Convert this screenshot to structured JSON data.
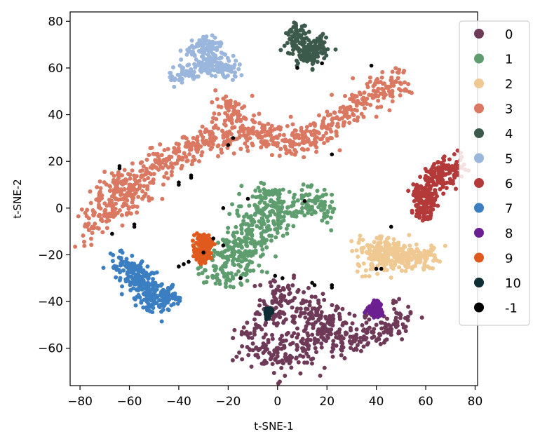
{
  "chart_data": {
    "type": "scatter",
    "title": "",
    "xlabel": "t-SNE-1",
    "ylabel": "t-SNE-2",
    "xlim": [
      -84,
      81
    ],
    "ylim": [
      -76,
      84
    ],
    "xticks": [
      -80,
      -60,
      -40,
      -20,
      0,
      20,
      40,
      60,
      80
    ],
    "yticks": [
      -60,
      -40,
      -20,
      0,
      20,
      40,
      60,
      80
    ],
    "tick_labels_x": [
      "−80",
      "−60",
      "−40",
      "−20",
      "0",
      "20",
      "40",
      "60",
      "80"
    ],
    "tick_labels_y": [
      "−60",
      "−40",
      "−20",
      "0",
      "20",
      "40",
      "60",
      "80"
    ],
    "grid": false,
    "legend_position": "upper-right",
    "series": [
      {
        "name": "0",
        "color": "#6f3a58",
        "points": [
          [
            0,
            -35
          ],
          [
            5,
            -40
          ],
          [
            10,
            -45
          ],
          [
            15,
            -43
          ],
          [
            18,
            -52
          ],
          [
            22,
            -48
          ],
          [
            25,
            -55
          ],
          [
            30,
            -58
          ],
          [
            35,
            -55
          ],
          [
            40,
            -50
          ],
          [
            45,
            -52
          ],
          [
            48,
            -47
          ],
          [
            -5,
            -60
          ],
          [
            -10,
            -58
          ],
          [
            -5,
            -50
          ],
          [
            0,
            -62
          ],
          [
            5,
            -65
          ],
          [
            10,
            -60
          ],
          [
            15,
            -58
          ],
          [
            -2,
            -45
          ]
        ],
        "spread": [
          5,
          4
        ]
      },
      {
        "name": "1",
        "color": "#5e9e6e",
        "points": [
          [
            -25,
            -25
          ],
          [
            -20,
            -22
          ],
          [
            -15,
            -15
          ],
          [
            -12,
            -10
          ],
          [
            -10,
            -5
          ],
          [
            -8,
            0
          ],
          [
            -5,
            5
          ],
          [
            -3,
            -3
          ],
          [
            0,
            0
          ],
          [
            5,
            -2
          ],
          [
            10,
            0
          ],
          [
            15,
            3
          ],
          [
            18,
            1
          ],
          [
            -18,
            -18
          ],
          [
            -20,
            -28
          ],
          [
            -15,
            -25
          ],
          [
            -5,
            -10
          ],
          [
            -10,
            -20
          ]
        ],
        "spread": [
          4,
          4
        ]
      },
      {
        "name": "2",
        "color": "#efc892",
        "points": [
          [
            37,
            -17
          ],
          [
            40,
            -20
          ],
          [
            42,
            -18
          ],
          [
            45,
            -16
          ],
          [
            48,
            -20
          ],
          [
            52,
            -22
          ],
          [
            55,
            -20
          ],
          [
            58,
            -21
          ],
          [
            62,
            -20
          ],
          [
            38,
            -24
          ],
          [
            44,
            -24
          ],
          [
            50,
            -18
          ]
        ],
        "spread": [
          3,
          2.5
        ]
      },
      {
        "name": "3",
        "color": "#da7862",
        "points": [
          [
            -75,
            -8
          ],
          [
            -72,
            -3
          ],
          [
            -70,
            2
          ],
          [
            -67,
            5
          ],
          [
            -65,
            10
          ],
          [
            -60,
            10
          ],
          [
            -55,
            14
          ],
          [
            -50,
            18
          ],
          [
            -45,
            21
          ],
          [
            -40,
            22
          ],
          [
            -35,
            25
          ],
          [
            -30,
            28
          ],
          [
            -25,
            30
          ],
          [
            -20,
            32
          ],
          [
            -15,
            33
          ],
          [
            -10,
            32
          ],
          [
            -5,
            31
          ],
          [
            0,
            30
          ],
          [
            5,
            29
          ],
          [
            10,
            30
          ],
          [
            15,
            31
          ],
          [
            20,
            34
          ],
          [
            25,
            38
          ],
          [
            30,
            42
          ],
          [
            35,
            46
          ],
          [
            40,
            50
          ],
          [
            45,
            52
          ],
          [
            48,
            54
          ],
          [
            -20,
            44
          ],
          [
            -18,
            40
          ],
          [
            -62,
            2
          ],
          [
            -58,
            6
          ]
        ],
        "spread": [
          4,
          3.5
        ]
      },
      {
        "name": "4",
        "color": "#3c5a4c",
        "points": [
          [
            8,
            72
          ],
          [
            10,
            70
          ],
          [
            12,
            67
          ],
          [
            15,
            68
          ],
          [
            17,
            70
          ],
          [
            9,
            76
          ],
          [
            13,
            65
          ]
        ],
        "spread": [
          2.5,
          2.5
        ]
      },
      {
        "name": "5",
        "color": "#9ab6dc",
        "points": [
          [
            -40,
            57
          ],
          [
            -35,
            58
          ],
          [
            -30,
            60
          ],
          [
            -27,
            62
          ],
          [
            -25,
            64
          ],
          [
            -30,
            67
          ],
          [
            -32,
            70
          ],
          [
            -28,
            70
          ],
          [
            -22,
            60
          ],
          [
            -20,
            59
          ]
        ],
        "spread": [
          3,
          2
        ]
      },
      {
        "name": "6",
        "color": "#b43a3a",
        "points": [
          [
            58,
            3
          ],
          [
            60,
            1
          ],
          [
            62,
            4
          ],
          [
            57,
            7
          ],
          [
            61,
            8
          ],
          [
            60,
            -2
          ],
          [
            65,
            12
          ],
          [
            67,
            14
          ],
          [
            70,
            16
          ],
          [
            72,
            18
          ],
          [
            63,
            15
          ]
        ],
        "spread": [
          2.5,
          2.5
        ]
      },
      {
        "name": "7",
        "color": "#3b7fc2",
        "points": [
          [
            -63,
            -23
          ],
          [
            -60,
            -26
          ],
          [
            -57,
            -29
          ],
          [
            -54,
            -32
          ],
          [
            -50,
            -35
          ],
          [
            -47,
            -37
          ],
          [
            -44,
            -39
          ],
          [
            -48,
            -42
          ],
          [
            -52,
            -38
          ],
          [
            -55,
            -34
          ],
          [
            -58,
            -30
          ]
        ],
        "spread": [
          3,
          2.5
        ]
      },
      {
        "name": "8",
        "color": "#6b1f90",
        "points": [
          [
            39,
            -42
          ],
          [
            40,
            -43
          ],
          [
            38,
            -44
          ],
          [
            41,
            -45
          ],
          [
            40,
            -41
          ]
        ],
        "spread": [
          0.8,
          0.8
        ]
      },
      {
        "name": "9",
        "color": "#e05a1e",
        "points": [
          [
            -31,
            -13
          ],
          [
            -30,
            -15
          ],
          [
            -29,
            -17
          ],
          [
            -30,
            -19
          ],
          [
            -31,
            -21
          ],
          [
            -28,
            -14
          ],
          [
            -29,
            -20
          ],
          [
            -32,
            -18
          ]
        ],
        "spread": [
          1.2,
          1.2
        ]
      },
      {
        "name": "10",
        "color": "#0f2d35",
        "points": [
          [
            -4,
            -44
          ],
          [
            -4,
            -45
          ],
          [
            -4,
            -46
          ],
          [
            -3,
            -44
          ]
        ],
        "spread": [
          0.4,
          0.6
        ]
      },
      {
        "name": "-1",
        "color": "#000000",
        "points": [
          [
            8,
            60
          ],
          [
            18,
            62
          ],
          [
            38,
            61
          ],
          [
            -18,
            30
          ],
          [
            -20,
            27
          ],
          [
            -64,
            18
          ],
          [
            -64,
            17
          ],
          [
            -35,
            14
          ],
          [
            -40,
            11
          ],
          [
            -40,
            10
          ],
          [
            -12,
            4
          ],
          [
            -22,
            0
          ],
          [
            11,
            3
          ],
          [
            -67,
            -11
          ],
          [
            -58,
            -8
          ],
          [
            -58,
            -7
          ],
          [
            -30,
            -19
          ],
          [
            -36,
            -23
          ],
          [
            -38,
            -24
          ],
          [
            -40,
            -25
          ],
          [
            -26,
            -13
          ],
          [
            -22,
            -16
          ],
          [
            -15,
            -30
          ],
          [
            -1,
            -29
          ],
          [
            2,
            -30
          ],
          [
            15,
            -33
          ],
          [
            22,
            -33
          ],
          [
            22,
            -34
          ],
          [
            14,
            -32
          ],
          [
            46,
            -8
          ],
          [
            40,
            -26
          ],
          [
            42,
            -26
          ],
          [
            -35,
            13
          ],
          [
            22,
            23
          ]
        ],
        "spread": [
          0,
          0
        ],
        "pointRadius": 2.8
      }
    ]
  }
}
